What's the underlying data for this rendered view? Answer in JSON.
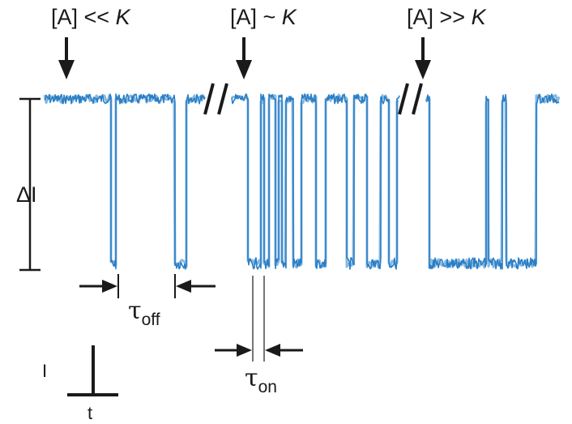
{
  "labels": {
    "regime_low_prefix": "[A] << ",
    "regime_low_k": "K",
    "regime_mid_prefix": "[A] ~ ",
    "regime_mid_k": "K",
    "regime_high_prefix": "[A] >> ",
    "regime_high_k": "K",
    "delta_i": "ΔI",
    "tau_symbol": "τ",
    "tau_off_sub": "off",
    "tau_on_sub": "on",
    "current_axis": "I",
    "time_axis": "t"
  },
  "colors": {
    "trace": "#2a7fc6",
    "ink": "#1a1a1a"
  }
}
